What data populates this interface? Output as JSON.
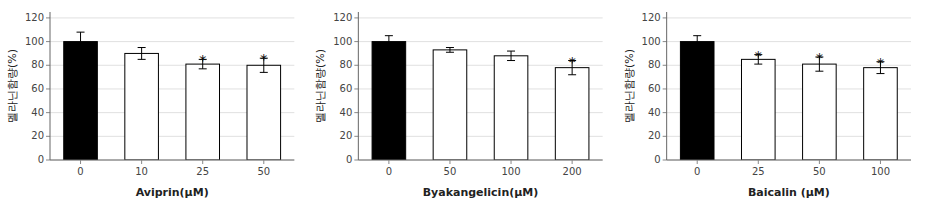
{
  "chart_data": [
    {
      "type": "bar",
      "xlabel": "Aviprin(μM)",
      "ylabel": "멜라닌함량(%)",
      "categories": [
        "0",
        "10",
        "25",
        "50"
      ],
      "values": [
        100,
        90,
        81,
        80
      ],
      "errors": [
        8,
        5,
        4,
        6
      ],
      "colors": [
        "black",
        "white",
        "white",
        "white"
      ],
      "annotations": [
        {
          "text": "*",
          "category": "25"
        },
        {
          "text": "*",
          "category": "50"
        }
      ],
      "ylim": [
        0,
        125
      ],
      "yticks": [
        0,
        20,
        40,
        60,
        80,
        100,
        120
      ],
      "grid": true
    },
    {
      "type": "bar",
      "xlabel": "Byakangelicin(μM)",
      "ylabel": "멜라닌함량(%)",
      "categories": [
        "0",
        "50",
        "100",
        "200"
      ],
      "values": [
        100,
        93,
        88,
        78
      ],
      "errors": [
        5,
        2,
        4,
        6
      ],
      "colors": [
        "black",
        "white",
        "white",
        "white"
      ],
      "annotations": [
        {
          "text": "*",
          "category": "200"
        }
      ],
      "ylim": [
        0,
        125
      ],
      "yticks": [
        0,
        20,
        40,
        60,
        80,
        100,
        120
      ],
      "grid": true
    },
    {
      "type": "bar",
      "xlabel": "Baicalin (μM)",
      "ylabel": "멜라닌함량(%)",
      "categories": [
        "0",
        "25",
        "50",
        "100"
      ],
      "values": [
        100,
        85,
        81,
        78
      ],
      "errors": [
        5,
        4,
        6,
        5
      ],
      "colors": [
        "black",
        "white",
        "white",
        "white"
      ],
      "annotations": [
        {
          "text": "*",
          "category": "25"
        },
        {
          "text": "*",
          "category": "50"
        },
        {
          "text": "*",
          "category": "100"
        }
      ],
      "ylim": [
        0,
        125
      ],
      "yticks": [
        0,
        20,
        40,
        60,
        80,
        100,
        120
      ],
      "grid": true
    }
  ]
}
